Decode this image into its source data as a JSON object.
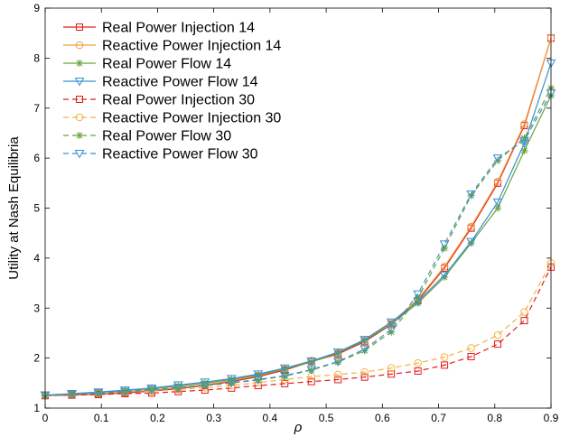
{
  "chart_data": {
    "type": "line",
    "xlabel": "ρ",
    "ylabel": "Utility at Nash Equilibria",
    "xlim": [
      0,
      0.9
    ],
    "ylim": [
      1,
      9
    ],
    "xticks": [
      "0",
      "0.1",
      "0.2",
      "0.3",
      "0.4",
      "0.5",
      "0.6",
      "0.7",
      "0.8",
      "0.9"
    ],
    "yticks": [
      "1",
      "2",
      "3",
      "4",
      "5",
      "6",
      "7",
      "8",
      "9"
    ],
    "grid": false,
    "legend_position": "top-left",
    "x": [
      0,
      0.0474,
      0.0947,
      0.1421,
      0.1895,
      0.2368,
      0.2842,
      0.3316,
      0.3789,
      0.4263,
      0.4737,
      0.5211,
      0.5684,
      0.6158,
      0.6632,
      0.7105,
      0.7579,
      0.8053,
      0.8526,
      0.9
    ],
    "series": [
      {
        "name": "Real Power Injection 14",
        "color": "#e31a1c",
        "marker": "square",
        "dashed": false,
        "values": [
          1.25,
          1.26,
          1.28,
          1.3,
          1.34,
          1.39,
          1.45,
          1.53,
          1.63,
          1.76,
          1.93,
          2.08,
          2.33,
          2.67,
          3.15,
          3.8,
          4.6,
          5.5,
          6.65,
          8.4
        ]
      },
      {
        "name": "Reactive Power Injection 14",
        "color": "#f39c3c",
        "marker": "circle",
        "dashed": false,
        "values": [
          1.25,
          1.27,
          1.29,
          1.32,
          1.36,
          1.41,
          1.47,
          1.55,
          1.65,
          1.78,
          1.95,
          2.1,
          2.36,
          2.7,
          3.18,
          3.83,
          4.63,
          5.53,
          6.68,
          8.4
        ]
      },
      {
        "name": "Real Power Flow 14",
        "color": "#6aa33c",
        "marker": "asterisk",
        "dashed": false,
        "values": [
          1.25,
          1.28,
          1.31,
          1.35,
          1.39,
          1.44,
          1.5,
          1.57,
          1.66,
          1.78,
          1.92,
          2.1,
          2.35,
          2.68,
          3.1,
          3.62,
          4.3,
          5.0,
          6.15,
          7.25
        ]
      },
      {
        "name": "Reactive Power Flow 14",
        "color": "#3a8fd0",
        "marker": "triangle-down",
        "dashed": false,
        "values": [
          1.26,
          1.29,
          1.32,
          1.36,
          1.4,
          1.46,
          1.52,
          1.59,
          1.68,
          1.8,
          1.94,
          2.12,
          2.37,
          2.72,
          3.13,
          3.66,
          4.33,
          5.12,
          6.3,
          7.9
        ]
      },
      {
        "name": "Real Power Injection 30",
        "color": "#e31a1c",
        "marker": "square",
        "dashed": true,
        "values": [
          1.25,
          1.26,
          1.27,
          1.29,
          1.3,
          1.33,
          1.36,
          1.4,
          1.45,
          1.49,
          1.53,
          1.57,
          1.62,
          1.68,
          1.74,
          1.86,
          2.03,
          2.28,
          2.75,
          3.82
        ]
      },
      {
        "name": "Reactive Power Injection 30",
        "color": "#f5b041",
        "marker": "circle",
        "dashed": true,
        "values": [
          1.26,
          1.28,
          1.3,
          1.32,
          1.34,
          1.37,
          1.41,
          1.45,
          1.51,
          1.57,
          1.63,
          1.67,
          1.72,
          1.8,
          1.9,
          2.02,
          2.2,
          2.46,
          2.92,
          3.9
        ]
      },
      {
        "name": "Real Power Flow 30",
        "color": "#6aa33c",
        "marker": "asterisk",
        "dashed": true,
        "values": [
          1.25,
          1.27,
          1.29,
          1.32,
          1.36,
          1.4,
          1.45,
          1.5,
          1.56,
          1.64,
          1.76,
          1.92,
          2.15,
          2.52,
          3.2,
          4.2,
          5.25,
          5.95,
          6.4,
          7.4
        ]
      },
      {
        "name": "Reactive Power Flow 30",
        "color": "#3a8fd0",
        "marker": "triangle-down",
        "dashed": true,
        "values": [
          1.26,
          1.28,
          1.3,
          1.33,
          1.37,
          1.41,
          1.46,
          1.51,
          1.57,
          1.65,
          1.77,
          1.93,
          2.18,
          2.57,
          3.28,
          4.28,
          5.28,
          6.0,
          6.35,
          7.3
        ]
      }
    ]
  }
}
